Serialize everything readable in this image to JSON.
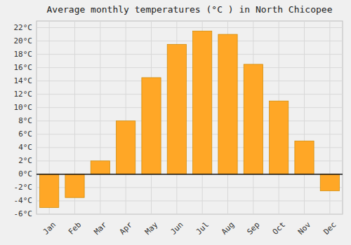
{
  "chart_data": {
    "type": "bar",
    "title": "Average monthly temperatures (°C ) in North Chicopee",
    "categories": [
      "Jan",
      "Feb",
      "Mar",
      "Apr",
      "May",
      "Jun",
      "Jul",
      "Aug",
      "Sep",
      "Oct",
      "Nov",
      "Dec"
    ],
    "values": [
      -5.0,
      -3.5,
      2.0,
      8.0,
      14.5,
      19.5,
      21.5,
      21.0,
      16.5,
      11.0,
      5.0,
      -2.5
    ],
    "color": "#FFA726",
    "ylim": [
      -6,
      23
    ],
    "yticks": [
      {
        "value": -6,
        "label": "-6°C"
      },
      {
        "value": -4,
        "label": "-4°C"
      },
      {
        "value": -2,
        "label": "-2°C"
      },
      {
        "value": 0,
        "label": "0°C"
      },
      {
        "value": 2,
        "label": "2°C"
      },
      {
        "value": 4,
        "label": "4°C"
      },
      {
        "value": 6,
        "label": "6°C"
      },
      {
        "value": 8,
        "label": "8°C"
      },
      {
        "value": 10,
        "label": "10°C"
      },
      {
        "value": 12,
        "label": "12°C"
      },
      {
        "value": 14,
        "label": "14°C"
      },
      {
        "value": 16,
        "label": "16°C"
      },
      {
        "value": 18,
        "label": "18°C"
      },
      {
        "value": 20,
        "label": "20°C"
      },
      {
        "value": 22,
        "label": "22°C"
      }
    ],
    "grid": true
  }
}
